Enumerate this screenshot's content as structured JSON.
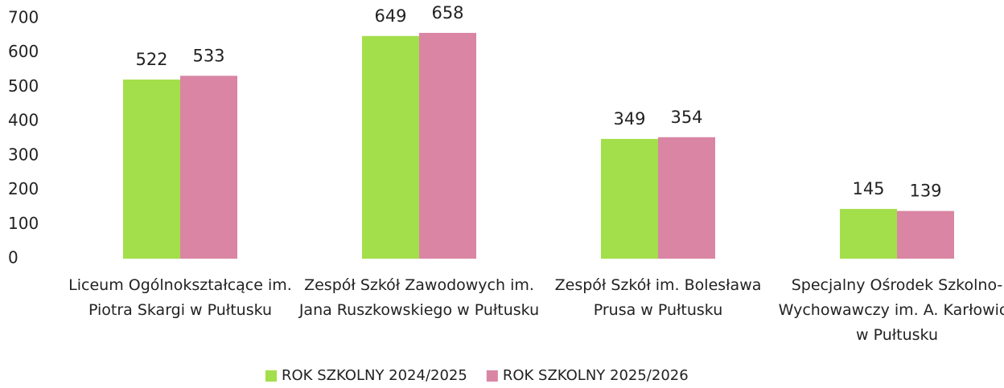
{
  "chart_data": {
    "type": "bar",
    "categories": [
      "Liceum Ogólnokształcące im. Piotra Skargi w Pułtusku",
      "Zespół Szkół Zawodowych im. Jana Ruszkowskiego w Pułtusku",
      "Zespół Szkół im. Bolesława Prusa w Pułtusku",
      "Specjalny Ośrodek Szkolno-Wychowawczy im. A. Karłowicz w Pułtusku"
    ],
    "series": [
      {
        "name": "ROK SZKOLNY 2024/2025",
        "color": "#a3df4b",
        "values": [
          522,
          649,
          349,
          145
        ]
      },
      {
        "name": "ROK SZKOLNY 2025/2026",
        "color": "#d985a3",
        "values": [
          533,
          658,
          354,
          139
        ]
      }
    ],
    "ylim": [
      0,
      700
    ],
    "yticks": [
      0,
      100,
      200,
      300,
      400,
      500,
      600,
      700
    ],
    "grid": false,
    "legend": "bottom"
  }
}
